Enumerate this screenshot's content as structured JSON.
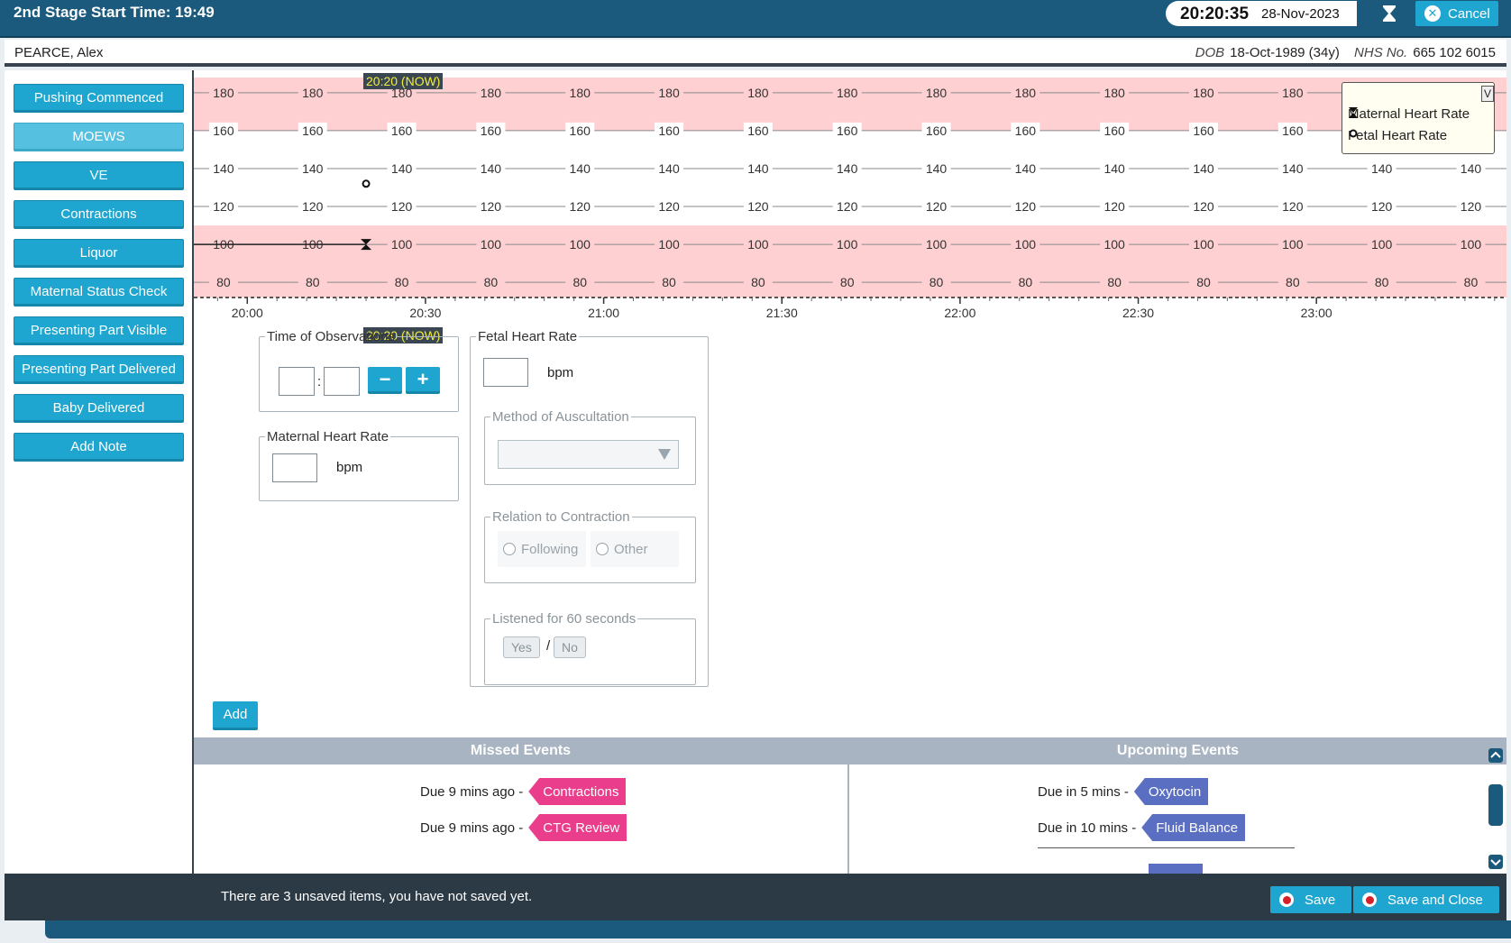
{
  "header": {
    "title": "2nd Stage Start Time: 19:49",
    "clock_time": "20:20:35",
    "clock_date": "28-Nov-2023",
    "cancel_label": "Cancel"
  },
  "patient": {
    "name": "PEARCE, Alex",
    "dob_label": "DOB",
    "dob_value": "18-Oct-1989 (34y)",
    "nhs_label": "NHS No.",
    "nhs_value": "665 102 6015"
  },
  "sidebar": {
    "items": [
      {
        "label": "Pushing Commenced"
      },
      {
        "label": "MOEWS"
      },
      {
        "label": "VE"
      },
      {
        "label": "Contractions"
      },
      {
        "label": "Liquor"
      },
      {
        "label": "Maternal Status Check"
      },
      {
        "label": "Presenting Part Visible"
      },
      {
        "label": "Presenting Part Delivered"
      },
      {
        "label": "Baby Delivered"
      },
      {
        "label": "Add Note"
      }
    ]
  },
  "chart": {
    "now_label": "20:20 (NOW)",
    "y_ticks": [
      180,
      160,
      140,
      120,
      100,
      80
    ],
    "x_ticks": [
      "20:00",
      "20:30",
      "21:00",
      "21:30",
      "22:00",
      "22:30",
      "23:00"
    ],
    "legend_toggle": "V",
    "legend": [
      {
        "name": "Maternal Heart Rate",
        "icon": "hourglass-icon"
      },
      {
        "name": "Fetal Heart Rate",
        "icon": "circle-icon"
      }
    ],
    "colors": {
      "alert_band": "#ffd0d2",
      "normal_band": "#ffffff"
    }
  },
  "chart_data": {
    "type": "scatter",
    "title": "",
    "xlabel": "",
    "ylabel": "",
    "x_range": [
      "19:51",
      "23:32"
    ],
    "ylim": [
      72,
      188
    ],
    "y_ticks": [
      80,
      100,
      120,
      140,
      160,
      180
    ],
    "x_ticks": [
      "20:00",
      "20:30",
      "21:00",
      "21:30",
      "22:00",
      "22:30",
      "23:00"
    ],
    "normal_band": [
      110,
      160
    ],
    "series": [
      {
        "name": "Maternal Heart Rate",
        "marker": "hourglass",
        "points": [
          {
            "x": "20:20",
            "y": 100
          }
        ]
      },
      {
        "name": "Fetal Heart Rate",
        "marker": "circle",
        "points": [
          {
            "x": "20:20",
            "y": 132
          }
        ]
      }
    ]
  },
  "form": {
    "time_legend": "Time of Observations",
    "time_sep": ":",
    "minus": "−",
    "plus": "+",
    "maternal_legend": "Maternal Heart Rate",
    "maternal_unit": "bpm",
    "fetal_legend": "Fetal Heart Rate",
    "fetal_unit": "bpm",
    "auscultation_legend": "Method of Auscultation",
    "relation_legend": "Relation to Contraction",
    "relation_options": [
      "Following",
      "Other"
    ],
    "listened_legend": "Listened for 60 seconds",
    "yes": "Yes",
    "slash": "/",
    "no": "No",
    "add_label": "Add"
  },
  "events": {
    "missed_title": "Missed Events",
    "upcoming_title": "Upcoming Events",
    "missed": [
      {
        "due": "Due 9 mins ago -",
        "name": "Contractions"
      },
      {
        "due": "Due 9 mins ago -",
        "name": "CTG Review"
      }
    ],
    "upcoming": [
      {
        "due": "Due in 5 mins -",
        "name": "Oxytocin"
      },
      {
        "due": "Due in 10 mins -",
        "name": "Fluid Balance"
      }
    ]
  },
  "footer": {
    "message": "There are 3 unsaved items, you have not saved yet.",
    "save_label": "Save",
    "save_close_label": "Save and Close"
  }
}
